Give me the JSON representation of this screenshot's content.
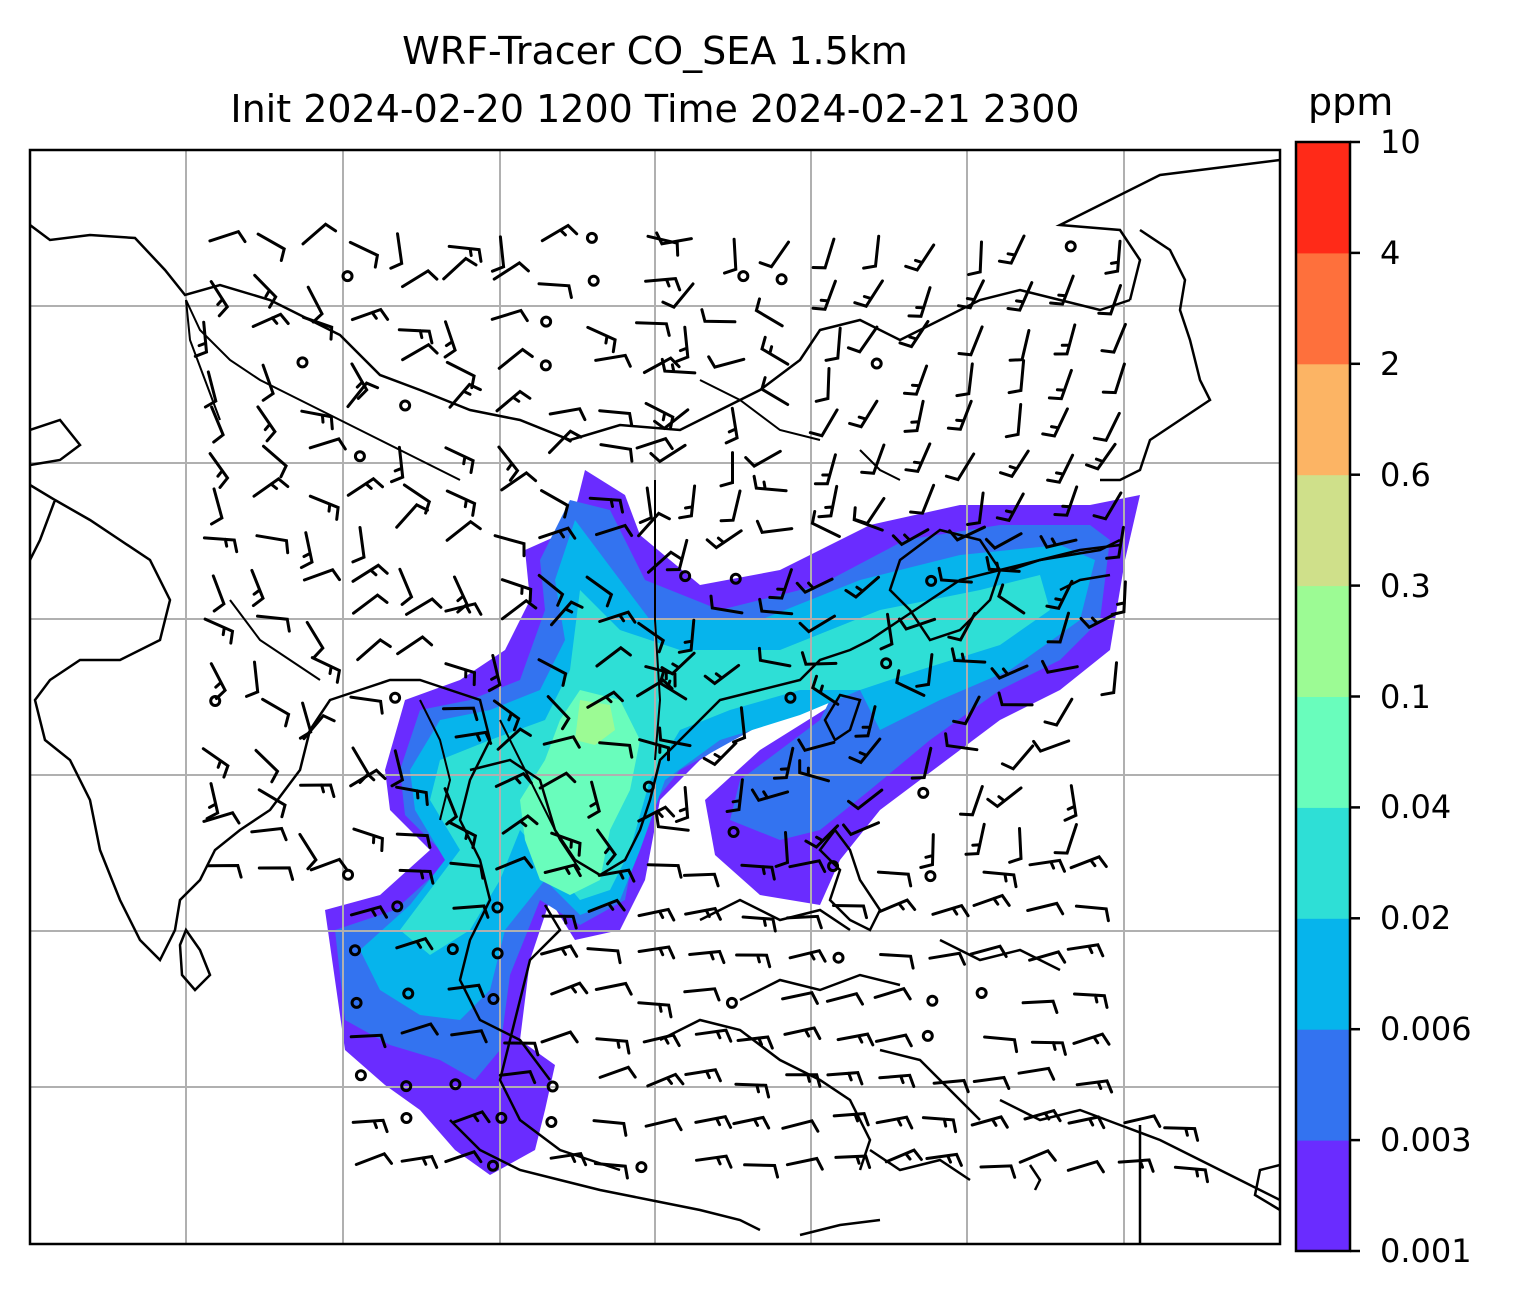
{
  "title": {
    "line1": "WRF-Tracer CO_SEA 1.5km",
    "line2": "Init 2024-02-20 1200 Time 2024-02-21 2300"
  },
  "colorbar": {
    "unit": "ppm",
    "levels": [
      "0.001",
      "0.003",
      "0.006",
      "0.02",
      "0.04",
      "0.1",
      "0.3",
      "0.6",
      "2",
      "4",
      "10"
    ],
    "colors": [
      "#6a2cff",
      "#3373f0",
      "#06b4ec",
      "#2edfd6",
      "#69fdbc",
      "#9cfb94",
      "#cfe08a",
      "#fcb464",
      "#fe703c",
      "#ff2a18"
    ]
  },
  "map": {
    "features": [
      "coastlines",
      "country-borders",
      "gridlines",
      "wind-barbs",
      "tracer-concentration-contours"
    ],
    "grid_color": "#b0b0b0"
  }
}
